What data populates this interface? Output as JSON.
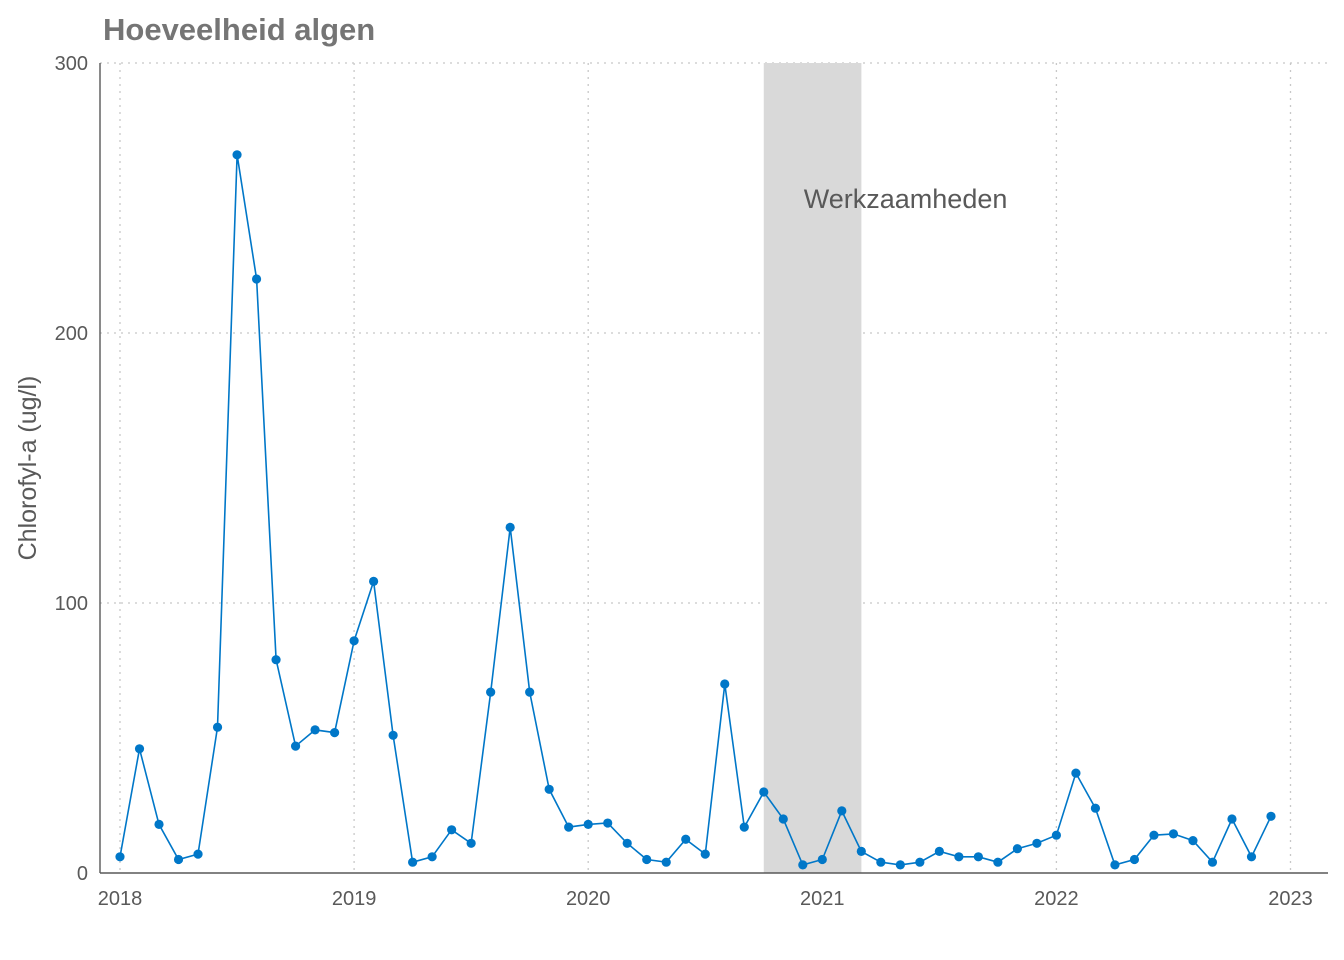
{
  "chart_data": {
    "type": "line",
    "title": "Hoeveelheid algen",
    "xlabel": "",
    "ylabel": "Chlorofyl-a (ug/l)",
    "xlim": [
      2017.92,
      2023.17
    ],
    "ylim": [
      0,
      300
    ],
    "x_ticks": [
      2018,
      2019,
      2020,
      2021,
      2022,
      2023
    ],
    "y_ticks": [
      0,
      100,
      200,
      300
    ],
    "grid": true,
    "color": "#0077C8",
    "band": {
      "from": 2020.75,
      "to": 2021.167,
      "color": "#D9D9D9",
      "label": "Werkzaamheden"
    },
    "x_start": 2018.0,
    "x_step_months": 1,
    "values": [
      6,
      46,
      18,
      5,
      7,
      54,
      266,
      220,
      79,
      47,
      53,
      52,
      86,
      108,
      51,
      4,
      6,
      16,
      11,
      67,
      128,
      67,
      31,
      17,
      18,
      18.5,
      11,
      5,
      4,
      12.5,
      7,
      70,
      17,
      30,
      20,
      3,
      5,
      23,
      8,
      4,
      3,
      4,
      8,
      6,
      6,
      4,
      9,
      11,
      14,
      37,
      24,
      3,
      5,
      14,
      14.5,
      12,
      4,
      20,
      6,
      21
    ]
  }
}
